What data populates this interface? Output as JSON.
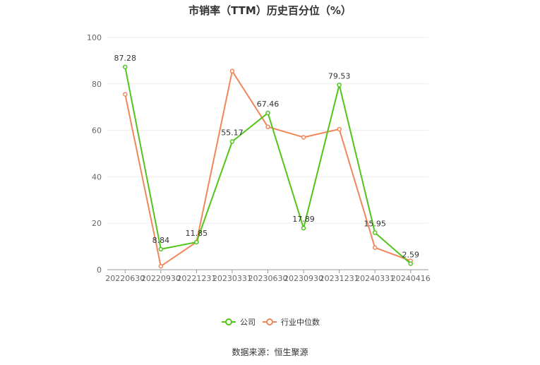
{
  "source_label": "数据来源：恒生聚源",
  "colors": {
    "company": "#52c41a",
    "industry": "#f0875a",
    "axis": "#999999",
    "grid": "#eeeeee"
  },
  "chart_data": {
    "type": "line",
    "title": "市销率（TTM）历史百分位（%）",
    "categories": [
      "20220630",
      "20220930",
      "20221231",
      "20230331",
      "20230630",
      "20230930",
      "20231231",
      "20240331",
      "20240416"
    ],
    "ylim": [
      0,
      100
    ],
    "yticks": [
      0,
      20,
      40,
      60,
      80,
      100
    ],
    "grid": true,
    "legend_position": "bottom-center",
    "series": [
      {
        "name": "公司",
        "values": [
          87.28,
          8.84,
          11.85,
          55.17,
          67.46,
          17.89,
          79.53,
          15.95,
          2.59
        ],
        "labels": [
          "87.28",
          "8.84",
          "11.85",
          "55.17",
          "67.46",
          "17.89",
          "79.53",
          "15.95",
          "2.59"
        ]
      },
      {
        "name": "行业中位数",
        "values": [
          75.5,
          1.5,
          11.9,
          85.5,
          61.5,
          57.0,
          60.5,
          9.5,
          3.8
        ]
      }
    ]
  }
}
